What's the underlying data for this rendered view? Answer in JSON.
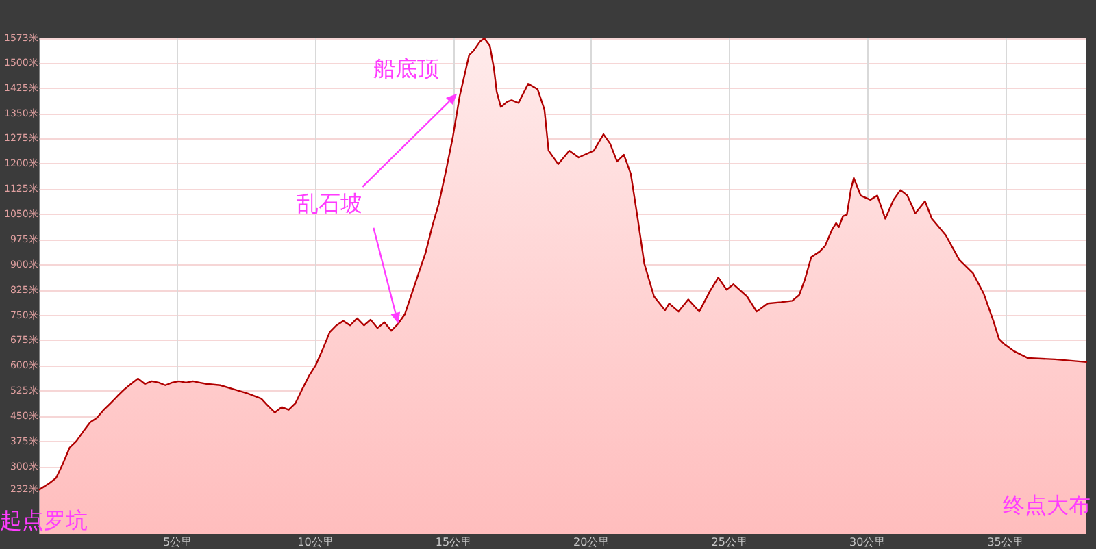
{
  "chart_data": {
    "type": "area",
    "color": "#b00000",
    "x": [
      0,
      0.35,
      0.6,
      0.84,
      1.09,
      1.34,
      1.59,
      1.84,
      2.08,
      2.33,
      2.58,
      2.83,
      3.08,
      3.32,
      3.57,
      3.82,
      4.07,
      4.32,
      4.56,
      4.81,
      5.06,
      5.31,
      5.56,
      5.8,
      6.05,
      6.55,
      7.04,
      7.54,
      8.04,
      8.28,
      8.53,
      8.78,
      9.03,
      9.28,
      9.52,
      9.77,
      10.02,
      10.27,
      10.52,
      10.76,
      11.01,
      11.26,
      11.51,
      11.76,
      12.0,
      12.25,
      12.5,
      12.75,
      13.0,
      13.24,
      13.49,
      13.74,
      13.99,
      14.24,
      14.48,
      14.73,
      14.98,
      15.23,
      15.57,
      15.72,
      15.97,
      16.12,
      16.32,
      16.47,
      16.57,
      16.72,
      16.96,
      17.11,
      17.36,
      17.71,
      18.05,
      18.3,
      18.45,
      18.8,
      19.2,
      19.54,
      20.09,
      20.44,
      20.68,
      20.93,
      21.18,
      21.43,
      21.68,
      21.92,
      22.27,
      22.67,
      22.82,
      23.16,
      23.51,
      23.91,
      24.3,
      24.6,
      24.9,
      25.15,
      25.64,
      25.99,
      26.39,
      26.88,
      27.28,
      27.53,
      27.73,
      27.97,
      28.27,
      28.47,
      28.72,
      28.87,
      28.97,
      29.12,
      29.26,
      29.41,
      29.51,
      29.76,
      30.11,
      30.36,
      30.65,
      30.95,
      31.2,
      31.45,
      31.74,
      32.09,
      32.34,
      32.84,
      33.33,
      33.83,
      34.22,
      34.57,
      34.77,
      34.97,
      35.32,
      35.81,
      36.8,
      37.94
    ],
    "values": [
      232,
      250,
      266,
      307,
      356,
      376,
      405,
      432,
      445,
      469,
      489,
      510,
      530,
      546,
      562,
      546,
      554,
      550,
      542,
      550,
      554,
      550,
      554,
      550,
      546,
      542,
      530,
      518,
      502,
      481,
      461,
      477,
      469,
      489,
      530,
      570,
      603,
      650,
      700,
      720,
      733,
      720,
      741,
      720,
      737,
      712,
      729,
      704,
      725,
      753,
      814,
      875,
      935,
      1016,
      1085,
      1179,
      1280,
      1402,
      1523,
      1535,
      1564,
      1573,
      1551,
      1483,
      1414,
      1369,
      1385,
      1389,
      1381,
      1438,
      1422,
      1361,
      1239,
      1199,
      1239,
      1219,
      1239,
      1288,
      1260,
      1207,
      1227,
      1170,
      1037,
      903,
      806,
      765,
      785,
      761,
      797,
      761,
      822,
      862,
      826,
      842,
      806,
      761,
      785,
      789,
      793,
      810,
      854,
      923,
      939,
      956,
      1004,
      1024,
      1012,
      1045,
      1049,
      1126,
      1158,
      1106,
      1093,
      1106,
      1037,
      1093,
      1122,
      1106,
      1053,
      1089,
      1037,
      988,
      915,
      875,
      814,
      733,
      680,
      664,
      643,
      623,
      619,
      611
    ],
    "xlim": [
      0,
      37.94
    ],
    "ylim": [
      100,
      1573
    ],
    "xticks": [
      {
        "value": 5,
        "label": "5公里"
      },
      {
        "value": 10,
        "label": "10公里"
      },
      {
        "value": 15,
        "label": "15公里"
      },
      {
        "value": 20,
        "label": "20公里"
      },
      {
        "value": 25,
        "label": "25公里"
      },
      {
        "value": 30,
        "label": "30公里"
      },
      {
        "value": 35,
        "label": "35公里"
      }
    ],
    "yticks": [
      {
        "value": 232,
        "label": "232米"
      },
      {
        "value": 300,
        "label": "300米"
      },
      {
        "value": 375,
        "label": "375米"
      },
      {
        "value": 450,
        "label": "450米"
      },
      {
        "value": 525,
        "label": "525米"
      },
      {
        "value": 600,
        "label": "600米"
      },
      {
        "value": 675,
        "label": "675米"
      },
      {
        "value": 750,
        "label": "750米"
      },
      {
        "value": 825,
        "label": "825米"
      },
      {
        "value": 900,
        "label": "900米"
      },
      {
        "value": 975,
        "label": "975米"
      },
      {
        "value": 1050,
        "label": "1050米"
      },
      {
        "value": 1125,
        "label": "1125米"
      },
      {
        "value": 1200,
        "label": "1200米"
      },
      {
        "value": 1275,
        "label": "1275米"
      },
      {
        "value": 1350,
        "label": "1350米"
      },
      {
        "value": 1425,
        "label": "1425米"
      },
      {
        "value": 1500,
        "label": "1500米"
      },
      {
        "value": 1573,
        "label": "1573米"
      }
    ],
    "grid": true,
    "marker": "none",
    "annotations": [
      {
        "text": "船底顶",
        "x": 16.12,
        "y": 1573
      },
      {
        "text": "乱石坡",
        "x": 13.0,
        "y": 725
      },
      "起点罗坑",
      "终点大布"
    ]
  }
}
